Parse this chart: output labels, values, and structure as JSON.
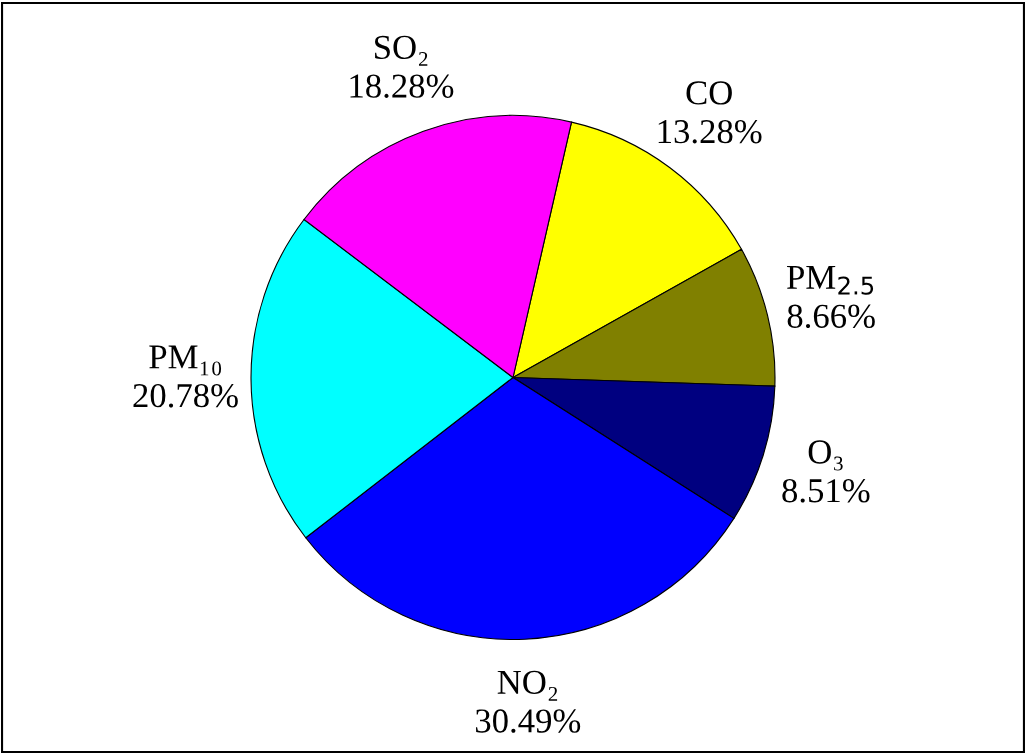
{
  "chart_data": {
    "type": "pie",
    "categories": [
      "CO",
      "PM$_{2.5}$",
      "O₃",
      "NO₂",
      "PM₁₀",
      "SO₂"
    ],
    "values": [
      13.28,
      8.66,
      8.51,
      30.49,
      20.78,
      18.28
    ],
    "value_labels": [
      "13.28%",
      "8.66%",
      "8.51%",
      "30.49%",
      "20.78%",
      "18.28%"
    ],
    "colors": [
      "#ffff00",
      "#808000",
      "#000080",
      "#0000ff",
      "#00ffff",
      "#ff00ff"
    ]
  }
}
